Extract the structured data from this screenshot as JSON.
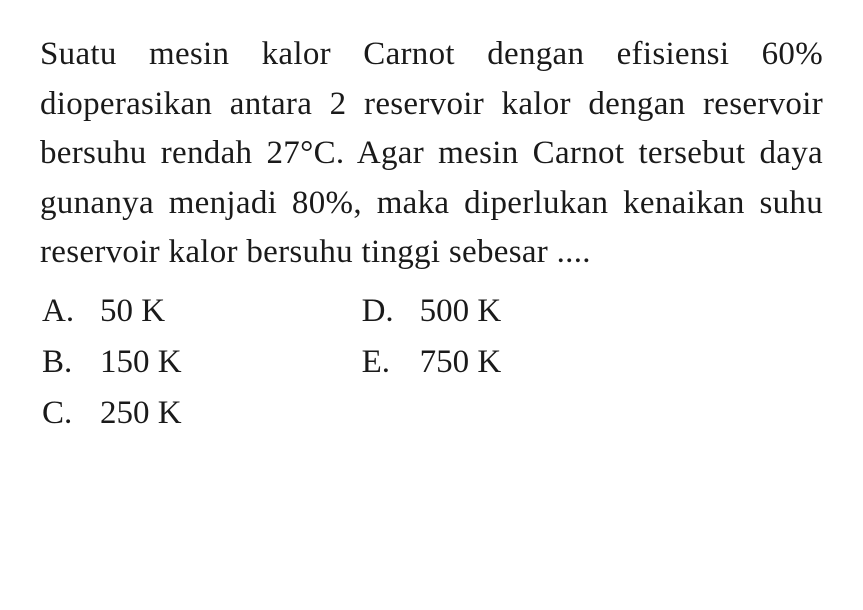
{
  "question": {
    "text": "Suatu mesin kalor Carnot dengan efisiensi 60% dioperasikan antara 2 reservoir kalor dengan reservoir bersuhu rendah 27°C. Agar mesin Carnot tersebut daya gunanya menjadi 80%, maka diperlukan kenaikan suhu reservoir kalor bersuhu tinggi sebesar ...."
  },
  "options": {
    "left": [
      {
        "letter": "A.",
        "value": "50 K"
      },
      {
        "letter": "B.",
        "value": "150 K"
      },
      {
        "letter": "C.",
        "value": "250 K"
      }
    ],
    "right": [
      {
        "letter": "D.",
        "value": "500 K"
      },
      {
        "letter": "E.",
        "value": "750 K"
      }
    ]
  },
  "styling": {
    "background_color": "#ffffff",
    "text_color": "#1a1a1a",
    "font_family": "Georgia, Times New Roman, serif",
    "question_fontsize": 33,
    "option_fontsize": 33,
    "line_height": 1.5,
    "text_align": "justify"
  }
}
